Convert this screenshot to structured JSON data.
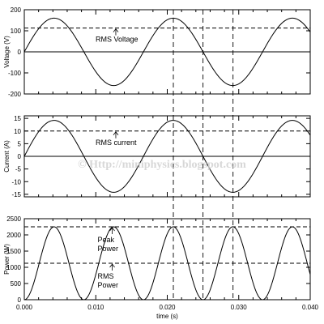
{
  "watermark": "© Http://miniphysics.blogspot.com",
  "chart_data": [
    {
      "type": "line",
      "ylabel": "Voltage (V)",
      "ylim": [
        -200,
        200
      ],
      "yticks": [
        -200,
        -100,
        0,
        100,
        200
      ],
      "xlim": [
        0,
        0.04
      ],
      "amplitude": 160,
      "frequency_hz": 60,
      "waveform": "sine",
      "rms_level": 113,
      "annotations": [
        {
          "text": "RMS Voltage",
          "x": 0.0128,
          "y": 113
        }
      ]
    },
    {
      "type": "line",
      "ylabel": "Current (A)",
      "ylim": [
        -16,
        16
      ],
      "yticks": [
        -15,
        -10,
        -5,
        0,
        5,
        10,
        15
      ],
      "xlim": [
        0,
        0.04
      ],
      "amplitude": 14.2,
      "frequency_hz": 60,
      "waveform": "sine",
      "rms_level": 10,
      "annotations": [
        {
          "text": "RMS current",
          "x": 0.0128,
          "y": 10
        }
      ]
    },
    {
      "type": "line",
      "ylabel": "Power (W)",
      "ylim": [
        0,
        2500
      ],
      "yticks": [
        0,
        500,
        1000,
        1500,
        2000,
        2500
      ],
      "xlim": [
        0,
        0.04
      ],
      "xticks": [
        "0.000",
        "0.010",
        "0.020",
        "0.030",
        "0.040"
      ],
      "xlabel": "time (s)",
      "amplitude": 2250,
      "frequency_hz": 60,
      "waveform": "sine-squared",
      "peak_level": 2250,
      "rms_level": 1125,
      "annotations": [
        {
          "text": "Peak Power",
          "x": 0.0123,
          "y": 2250
        },
        {
          "text": "RMS Power",
          "x": 0.0123,
          "y": 1125
        }
      ]
    }
  ],
  "vertical_markers_x": [
    0.02085,
    0.025,
    0.0292
  ]
}
